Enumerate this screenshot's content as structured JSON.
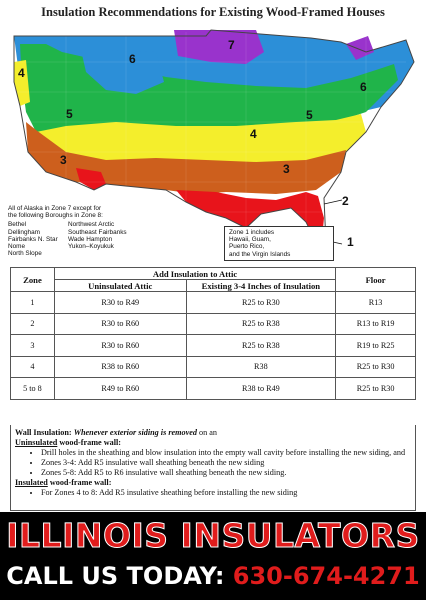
{
  "title": "Insulation Recommendations for Existing Wood-Framed Houses",
  "map": {
    "zone_labels": [
      "1",
      "2",
      "3",
      "3",
      "4",
      "4",
      "5",
      "5",
      "6",
      "6",
      "7"
    ],
    "alaska_note": {
      "intro": "All of Alaska in Zone 7 except for the following Boroughs in Zone 8:",
      "left": [
        "Bethel",
        "Dellingham",
        "Fairbanks N. Star",
        "Nome",
        "North Slope"
      ],
      "right": [
        "Northwest Arctic",
        "Southeast Fairbanks",
        "Wade Hampton",
        "Yukon–Koyukuk"
      ]
    },
    "zone1_note": [
      "Zone 1 includes",
      "Hawaii, Guam,",
      "Puerto Rico,",
      "and the Virgin Islands"
    ],
    "zone_colors": {
      "1": "#ee2a8f",
      "2": "#e8141b",
      "3": "#cd5f1d",
      "4": "#f4ee2c",
      "5": "#20b44a",
      "6": "#2c8fd8",
      "7": "#9933cc"
    }
  },
  "table": {
    "headers": {
      "zone": "Zone",
      "group": "Add Insulation to Attic",
      "uninsulated": "Uninsulated Attic",
      "existing": "Existing 3-4 Inches of Insulation",
      "floor": "Floor"
    },
    "rows": [
      {
        "zone": "1",
        "uninsulated": "R30 to R49",
        "existing": "R25 to R30",
        "floor": "R13"
      },
      {
        "zone": "2",
        "uninsulated": "R30 to R60",
        "existing": "R25 to R38",
        "floor": "R13 to R19"
      },
      {
        "zone": "3",
        "uninsulated": "R30 to R60",
        "existing": "R25 to R38",
        "floor": "R19 to R25"
      },
      {
        "zone": "4",
        "uninsulated": "R38 to R60",
        "existing": "R38",
        "floor": "R25 to R30"
      },
      {
        "zone": "5 to 8",
        "uninsulated": "R49 to R60",
        "existing": "R38 to R49",
        "floor": "R25 to R30"
      }
    ]
  },
  "wall": {
    "heading": "Wall Insulation:",
    "condition": "Whenever exterior siding is removed",
    "condition_tail": " on an",
    "uninsulated_word": "Uninsulated",
    "uninsulated_tail": " wood-frame wall:",
    "bullets_uninsulated": [
      "Drill holes in the sheathing and blow insulation into the empty wall cavity before installing the new siding, and",
      "Zones 3-4: Add R5 insulative wall sheathing beneath the new siding",
      "Zones 5-8: Add R5 to R6 insulative wall sheathing beneath the new siding."
    ],
    "insulated_word": "Insulated",
    "insulated_tail": " wood-frame wall:",
    "bullets_insulated": [
      "For Zones 4 to 8: Add R5 insulative sheathing before installing the new siding"
    ]
  },
  "banner": {
    "brand": "ILLINOIS INSULATORS",
    "cta_label": "CALL US TODAY:",
    "phone": "630-674-4271"
  }
}
